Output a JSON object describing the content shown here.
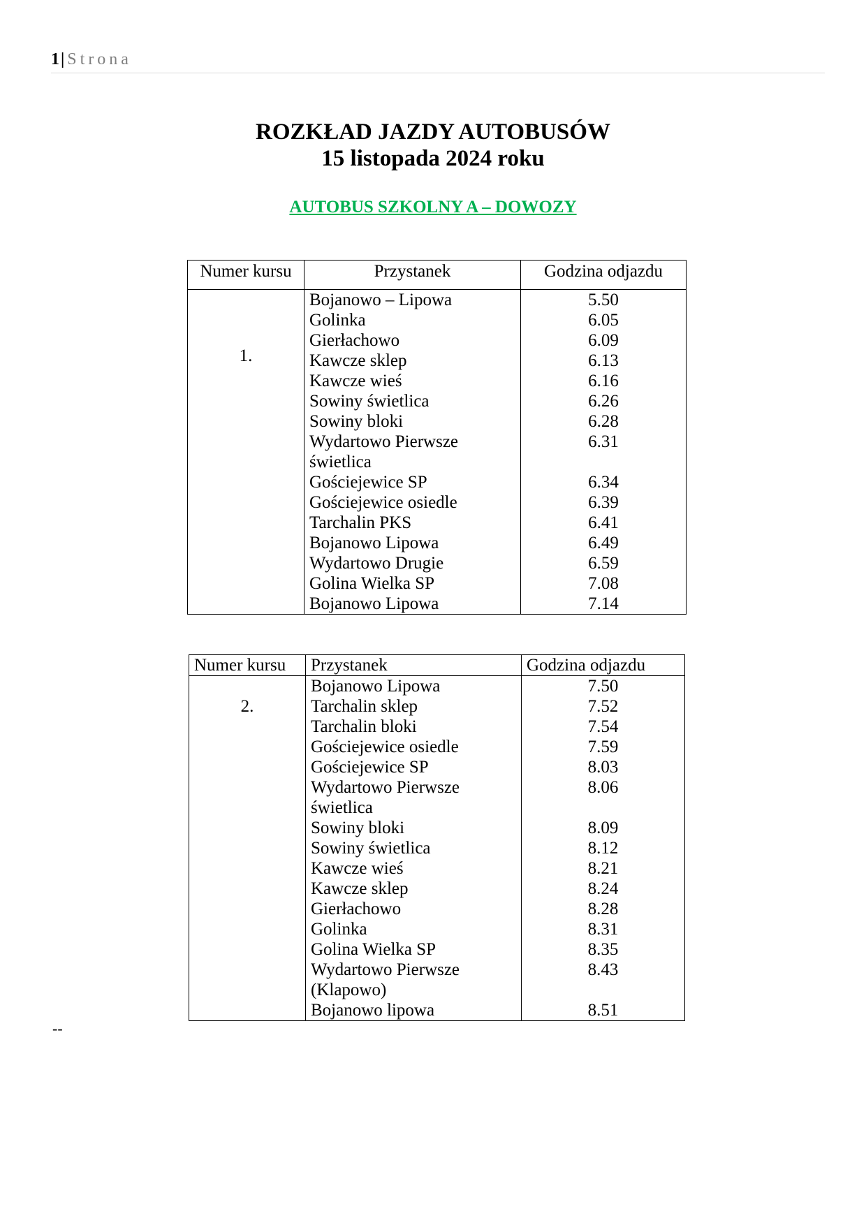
{
  "header": {
    "page_number": "1",
    "separator": "|",
    "page_label": "Strona"
  },
  "title": {
    "line1": "ROZKŁAD JAZDY AUTOBUSÓW",
    "line2": "15 listopada  2024 roku"
  },
  "subtitle": "AUTOBUS SZKOLNY  A – DOWOZY",
  "subtitle_color": "#00b050",
  "tables": [
    {
      "headers": [
        "Numer kursu",
        "Przystanek",
        "Godzina odjazdu"
      ],
      "course": "1.",
      "rows": [
        {
          "stop": "Bojanowo – Lipowa",
          "time": "5.50"
        },
        {
          "stop": "Golinka",
          "time": "6.05"
        },
        {
          "stop": "Gierłachowo",
          "time": "6.09"
        },
        {
          "stop": "Kawcze sklep",
          "time": "6.13"
        },
        {
          "stop": "Kawcze wieś",
          "time": "6.16"
        },
        {
          "stop": "Sowiny świetlica",
          "time": "6.26"
        },
        {
          "stop": "Sowiny bloki",
          "time": "6.28"
        },
        {
          "stop": "Wydartowo Pierwsze\nświetlica",
          "time": "6.31"
        },
        {
          "stop": "Gościejewice SP",
          "time": "6.34"
        },
        {
          "stop": "Gościejewice osiedle",
          "time": "6.39"
        },
        {
          "stop": "Tarchalin PKS",
          "time": "6.41"
        },
        {
          "stop": "Bojanowo Lipowa",
          "time": "6.49"
        },
        {
          "stop": "Wydartowo Drugie",
          "time": "6.59"
        },
        {
          "stop": "Golina Wielka SP",
          "time": "7.08"
        },
        {
          "stop": "Bojanowo Lipowa",
          "time": "7.14"
        }
      ]
    },
    {
      "headers": [
        "Numer kursu",
        "Przystanek",
        "Godzina odjazdu"
      ],
      "course": "2.",
      "rows": [
        {
          "stop": "Bojanowo Lipowa",
          "time": "7.50"
        },
        {
          "stop": "Tarchalin sklep",
          "time": "7.52"
        },
        {
          "stop": "Tarchalin bloki",
          "time": "7.54"
        },
        {
          "stop": "Gościejewice osiedle",
          "time": "7.59"
        },
        {
          "stop": "Gościejewice SP",
          "time": "8.03"
        },
        {
          "stop": "Wydartowo Pierwsze\nświetlica",
          "time": "8.06"
        },
        {
          "stop": "Sowiny bloki",
          "time": "8.09"
        },
        {
          "stop": "Sowiny świetlica",
          "time": "8.12"
        },
        {
          "stop": "Kawcze wieś",
          "time": "8.21"
        },
        {
          "stop": "Kawcze sklep",
          "time": "8.24"
        },
        {
          "stop": "Gierłachowo",
          "time": "8.28"
        },
        {
          "stop": "Golinka",
          "time": "8.31"
        },
        {
          "stop": "Golina Wielka SP",
          "time": "8.35"
        },
        {
          "stop": "Wydartowo Pierwsze\n(Klapowo)",
          "time": "8.43"
        },
        {
          "stop": "Bojanowo lipowa",
          "time": "8.51"
        }
      ]
    }
  ],
  "footer_mark": "--"
}
